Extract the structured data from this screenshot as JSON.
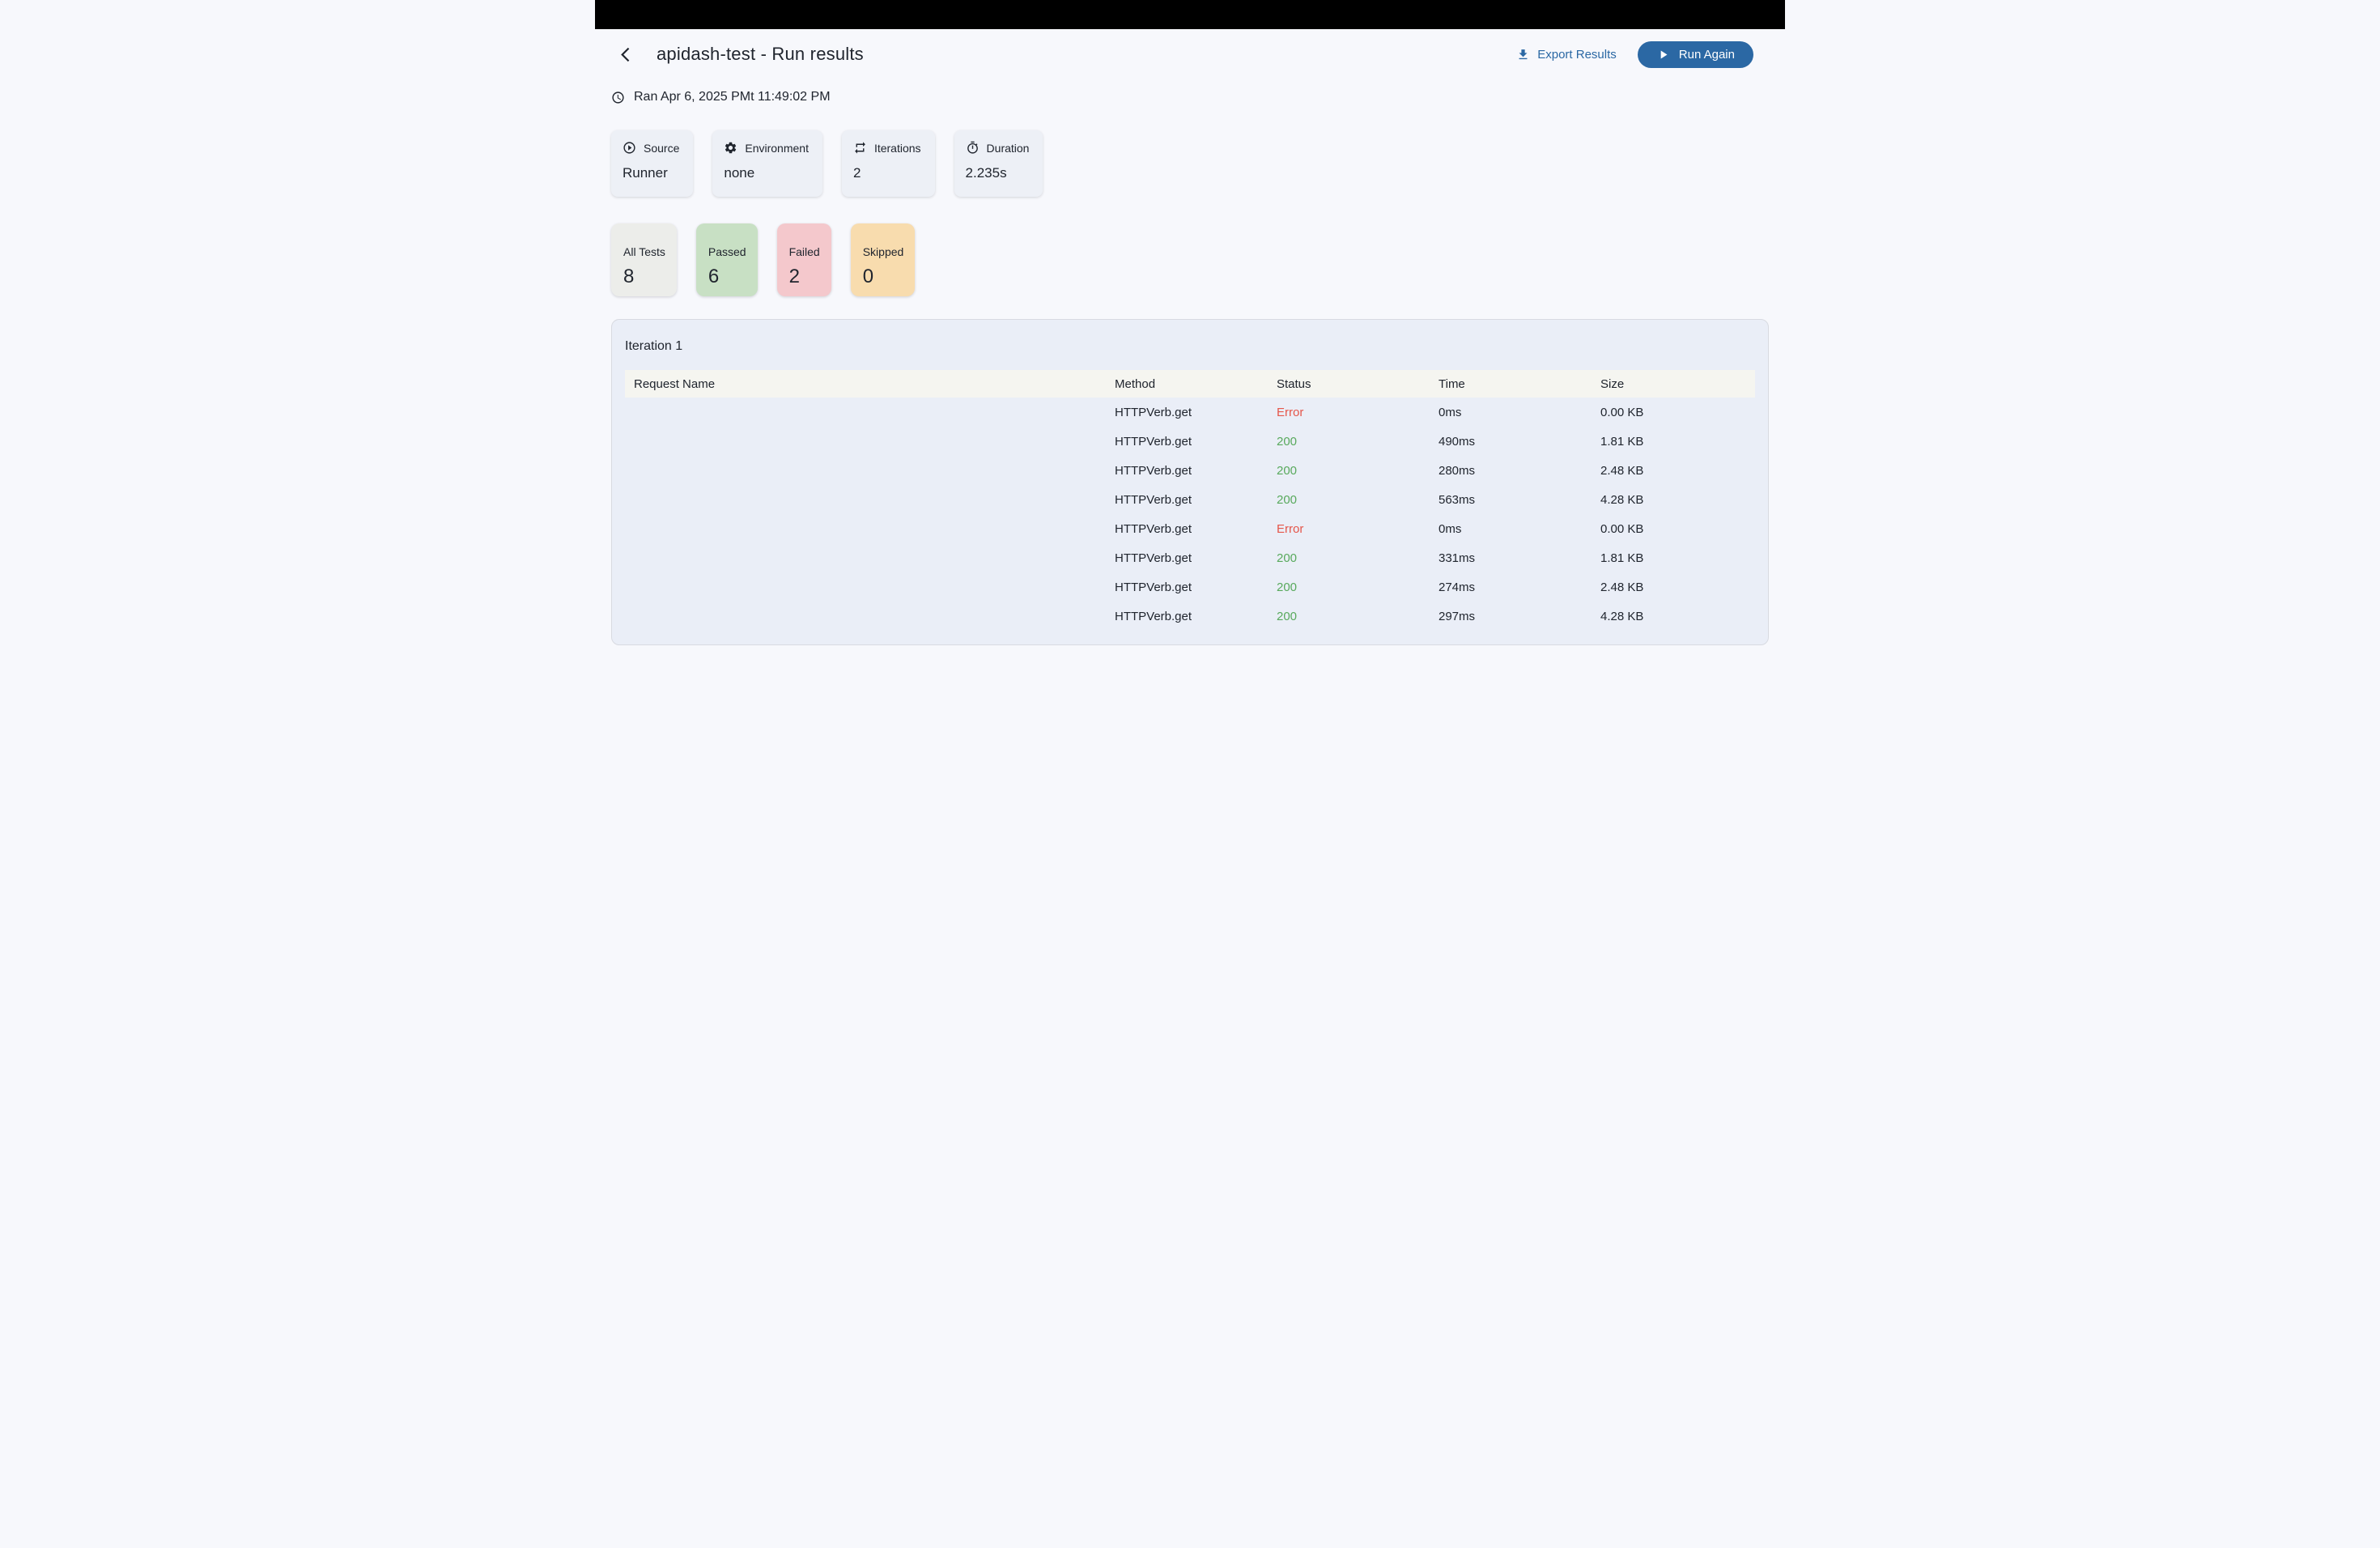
{
  "header": {
    "title": "apidash-test - Run results",
    "back_icon": "chevron-left-icon",
    "export_icon": "download-icon",
    "export_label": "Export Results",
    "run_icon": "play-icon",
    "run_again_label": "Run Again"
  },
  "meta": {
    "icon": "clock-icon",
    "ran_text": "Ran Apr 6, 2025 PMt 11:49:02 PM"
  },
  "info_cards": [
    {
      "icon": "play-circle-icon",
      "label": "Source",
      "value": "Runner"
    },
    {
      "icon": "gear-icon",
      "label": "Environment",
      "value": "none"
    },
    {
      "icon": "repeat-icon",
      "label": "Iterations",
      "value": "2"
    },
    {
      "icon": "stopwatch-icon",
      "label": "Duration",
      "value": "2.235s"
    }
  ],
  "stat_cards": [
    {
      "label": "All Tests",
      "value": "8",
      "bg": "#ecedea"
    },
    {
      "label": "Passed",
      "value": "6",
      "bg": "#c8e0c4"
    },
    {
      "label": "Failed",
      "value": "2",
      "bg": "#f4c8cc"
    },
    {
      "label": "Skipped",
      "value": "0",
      "bg": "#f8dcae"
    }
  ],
  "iteration": {
    "title": "Iteration 1",
    "columns": [
      "Request Name",
      "Method",
      "Status",
      "Time",
      "Size"
    ],
    "rows": [
      {
        "name": "",
        "method": "HTTPVerb.get",
        "status": "Error",
        "status_type": "error",
        "time": "0ms",
        "size": "0.00 KB"
      },
      {
        "name": "",
        "method": "HTTPVerb.get",
        "status": "200",
        "status_type": "ok",
        "time": "490ms",
        "size": "1.81 KB"
      },
      {
        "name": "",
        "method": "HTTPVerb.get",
        "status": "200",
        "status_type": "ok",
        "time": "280ms",
        "size": "2.48 KB"
      },
      {
        "name": "",
        "method": "HTTPVerb.get",
        "status": "200",
        "status_type": "ok",
        "time": "563ms",
        "size": "4.28 KB"
      },
      {
        "name": "",
        "method": "HTTPVerb.get",
        "status": "Error",
        "status_type": "error",
        "time": "0ms",
        "size": "0.00 KB"
      },
      {
        "name": "",
        "method": "HTTPVerb.get",
        "status": "200",
        "status_type": "ok",
        "time": "331ms",
        "size": "1.81 KB"
      },
      {
        "name": "",
        "method": "HTTPVerb.get",
        "status": "200",
        "status_type": "ok",
        "time": "274ms",
        "size": "2.48 KB"
      },
      {
        "name": "",
        "method": "HTTPVerb.get",
        "status": "200",
        "status_type": "ok",
        "time": "297ms",
        "size": "4.28 KB"
      }
    ]
  },
  "colors": {
    "accent": "#2b68a4",
    "status_ok": "#58a95c",
    "status_error": "#e5564a",
    "all_tests_bg": "#ecedea",
    "passed_bg": "#c8e0c4",
    "failed_bg": "#f4c8cc",
    "skipped_bg": "#f8dcae",
    "panel_bg": "#eaeef7",
    "table_header_bg": "#f5f5f0",
    "titlebar_bg": "#000000",
    "page_bg": "#f7f8fc"
  }
}
